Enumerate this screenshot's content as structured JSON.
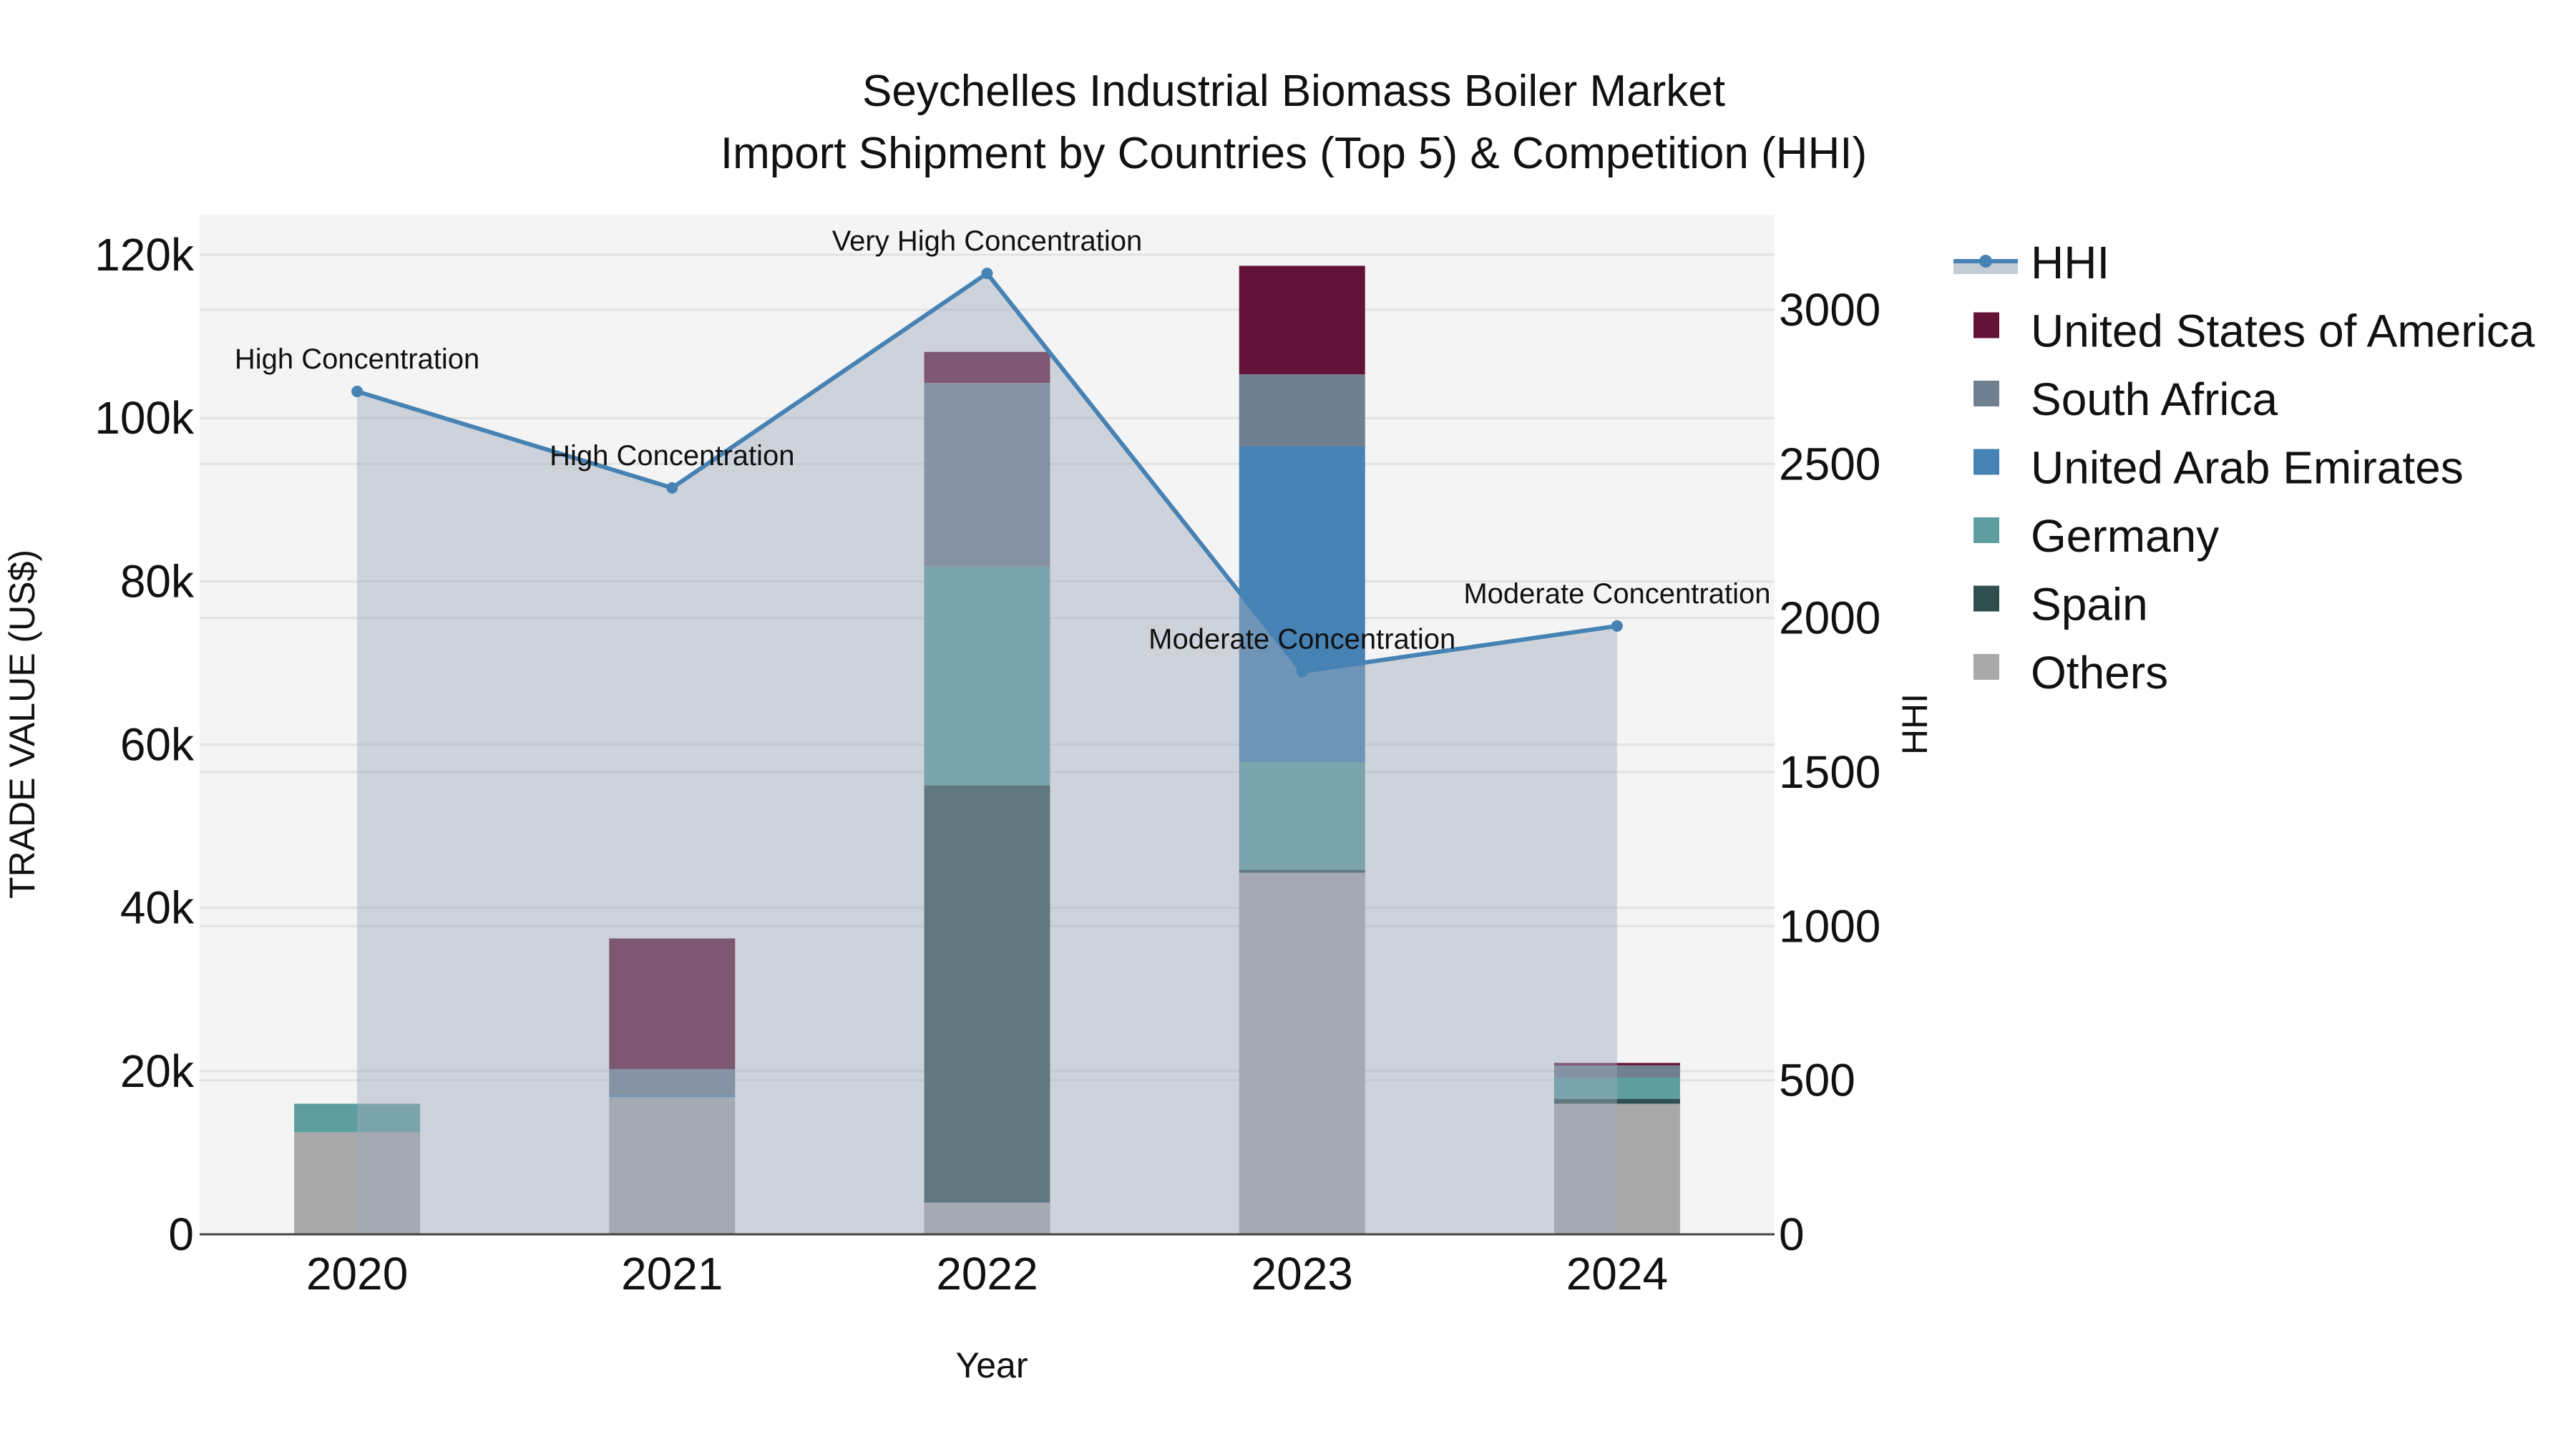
{
  "title": {
    "line1": "Seychelles Industrial Biomass Boiler Market",
    "line2": "Import Shipment by Countries (Top 5) & Competition (HHI)"
  },
  "axes": {
    "x_title": "Year",
    "y_left_title": "TRADE VALUE (US$)",
    "y_right_title": "HHI",
    "y_left_ticks": [
      "0",
      "20k",
      "40k",
      "60k",
      "80k",
      "100k",
      "120k"
    ],
    "y_right_ticks": [
      "0",
      "500",
      "1000",
      "1500",
      "2000",
      "2500",
      "3000"
    ]
  },
  "legend": {
    "items": [
      {
        "label": "HHI",
        "type": "line",
        "color": "#4682B4"
      },
      {
        "label": "United States of America",
        "type": "bar",
        "color": "#631338"
      },
      {
        "label": "South Africa",
        "type": "bar",
        "color": "#708090"
      },
      {
        "label": "United Arab Emirates",
        "type": "bar",
        "color": "#4682B4"
      },
      {
        "label": "Germany",
        "type": "bar",
        "color": "#5F9EA0"
      },
      {
        "label": "Spain",
        "type": "bar",
        "color": "#2F4F4F"
      },
      {
        "label": "Others",
        "type": "bar",
        "color": "#A9A9A9"
      }
    ]
  },
  "colors": {
    "plot_bg": "#F4F4F4",
    "grid": "#E2E2E2",
    "hhi_line": "#4682B4",
    "hhi_area": "rgba(160,170,188,0.45)",
    "axis_line": "#444444"
  },
  "chart_data": {
    "type": "bar",
    "title": "Seychelles Industrial Biomass Boiler Market - Import Shipment by Countries (Top 5) & Competition (HHI)",
    "xlabel": "Year",
    "ylabel": "TRADE VALUE (US$)",
    "y2label": "HHI",
    "ylim": [
      0,
      125000
    ],
    "y2lim": [
      0,
      3300
    ],
    "stacked": true,
    "categories": [
      "2020",
      "2021",
      "2022",
      "2023",
      "2024"
    ],
    "series": [
      {
        "name": "Others",
        "color": "#A9A9A9",
        "values": [
          12500,
          16800,
          3900,
          44300,
          16000
        ]
      },
      {
        "name": "Spain",
        "color": "#2F4F4F",
        "values": [
          0,
          0,
          51100,
          350,
          600
        ]
      },
      {
        "name": "Germany",
        "color": "#5F9EA0",
        "values": [
          3500,
          0,
          26800,
          13200,
          2600
        ]
      },
      {
        "name": "United Arab Emirates",
        "color": "#4682B4",
        "values": [
          0,
          250,
          0,
          38700,
          0
        ]
      },
      {
        "name": "South Africa",
        "color": "#708090",
        "values": [
          0,
          3200,
          22500,
          8800,
          1500
        ]
      },
      {
        "name": "United States of America",
        "color": "#631338",
        "values": [
          0,
          16000,
          3800,
          13300,
          300
        ]
      }
    ],
    "line_series": {
      "name": "HHI",
      "axis": "right",
      "type": "line+area",
      "values": [
        2735,
        2422,
        3118,
        1826,
        1974
      ],
      "annotations": [
        "High Concentration",
        "High Concentration",
        "Very High Concentration",
        "Moderate Concentration",
        "Moderate Concentration"
      ]
    },
    "grid": true,
    "legend_position": "right"
  }
}
